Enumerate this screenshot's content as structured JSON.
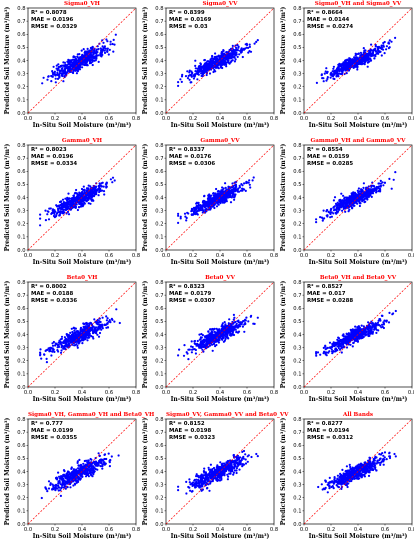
{
  "figure": {
    "xlabel": "In-Situ Soil Moisture (m³/m³)",
    "ylabel": "Predicted Soil Moisture (m³/m³)",
    "stat_labels": {
      "r2": "R² = ",
      "mae": "MAE = ",
      "rmse": "RMSE = "
    }
  },
  "colors": {
    "points": "#0000ff",
    "reference_line": "#ff0000",
    "title": "#ff0000"
  },
  "chart_data": [
    {
      "type": "scatter",
      "title": "Sigma0_VH",
      "r2": "0.8078",
      "mae": "0.0196",
      "rmse": "0.0329"
    },
    {
      "type": "scatter",
      "title": "Sigma0_VV",
      "r2": "0.8399",
      "mae": "0.0169",
      "rmse": "0.03"
    },
    {
      "type": "scatter",
      "title": "Sigma0_VH and Sigma0_VV",
      "r2": "0.8664",
      "mae": "0.0144",
      "rmse": "0.0274"
    },
    {
      "type": "scatter",
      "title": "Gamma0_VH",
      "r2": "0.8023",
      "mae": "0.0196",
      "rmse": "0.0334"
    },
    {
      "type": "scatter",
      "title": "Gamma0_VV",
      "r2": "0.8337",
      "mae": "0.0176",
      "rmse": "0.0306"
    },
    {
      "type": "scatter",
      "title": "Gamma0_VH and Gamma0_VV",
      "r2": "0.8554",
      "mae": "0.0159",
      "rmse": "0.0285"
    },
    {
      "type": "scatter",
      "title": "Beta0_VH",
      "r2": "0.8002",
      "mae": "0.0188",
      "rmse": "0.0336"
    },
    {
      "type": "scatter",
      "title": "Beta0_VV",
      "r2": "0.8323",
      "mae": "0.0179",
      "rmse": "0.0307"
    },
    {
      "type": "scatter",
      "title": "Beta0_VH and Beta0_VV",
      "r2": "0.8527",
      "mae": "0.017",
      "rmse": "0.0288"
    },
    {
      "type": "scatter",
      "title": "Sigma0_VH, Gamma0_VH and Beta0_VH",
      "r2": "0.777",
      "mae": "0.0199",
      "rmse": "0.0355"
    },
    {
      "type": "scatter",
      "title": "Sigma0_VV, Gamma0_VV and Beta0_VV",
      "r2": "0.8152",
      "mae": "0.0198",
      "rmse": "0.0323"
    },
    {
      "type": "scatter",
      "title": "All Bands",
      "r2": "0.8277",
      "mae": "0.0194",
      "rmse": "0.0312"
    }
  ],
  "axes": {
    "xlim": [
      0.0,
      0.8
    ],
    "ylim": [
      0.0,
      0.8
    ],
    "xticks": [
      "0.0",
      "0.2",
      "0.4",
      "0.6",
      "0.8"
    ],
    "yticks": [
      "0.0",
      "0.1",
      "0.2",
      "0.3",
      "0.4",
      "0.5",
      "0.6",
      "0.7",
      "0.8"
    ]
  }
}
